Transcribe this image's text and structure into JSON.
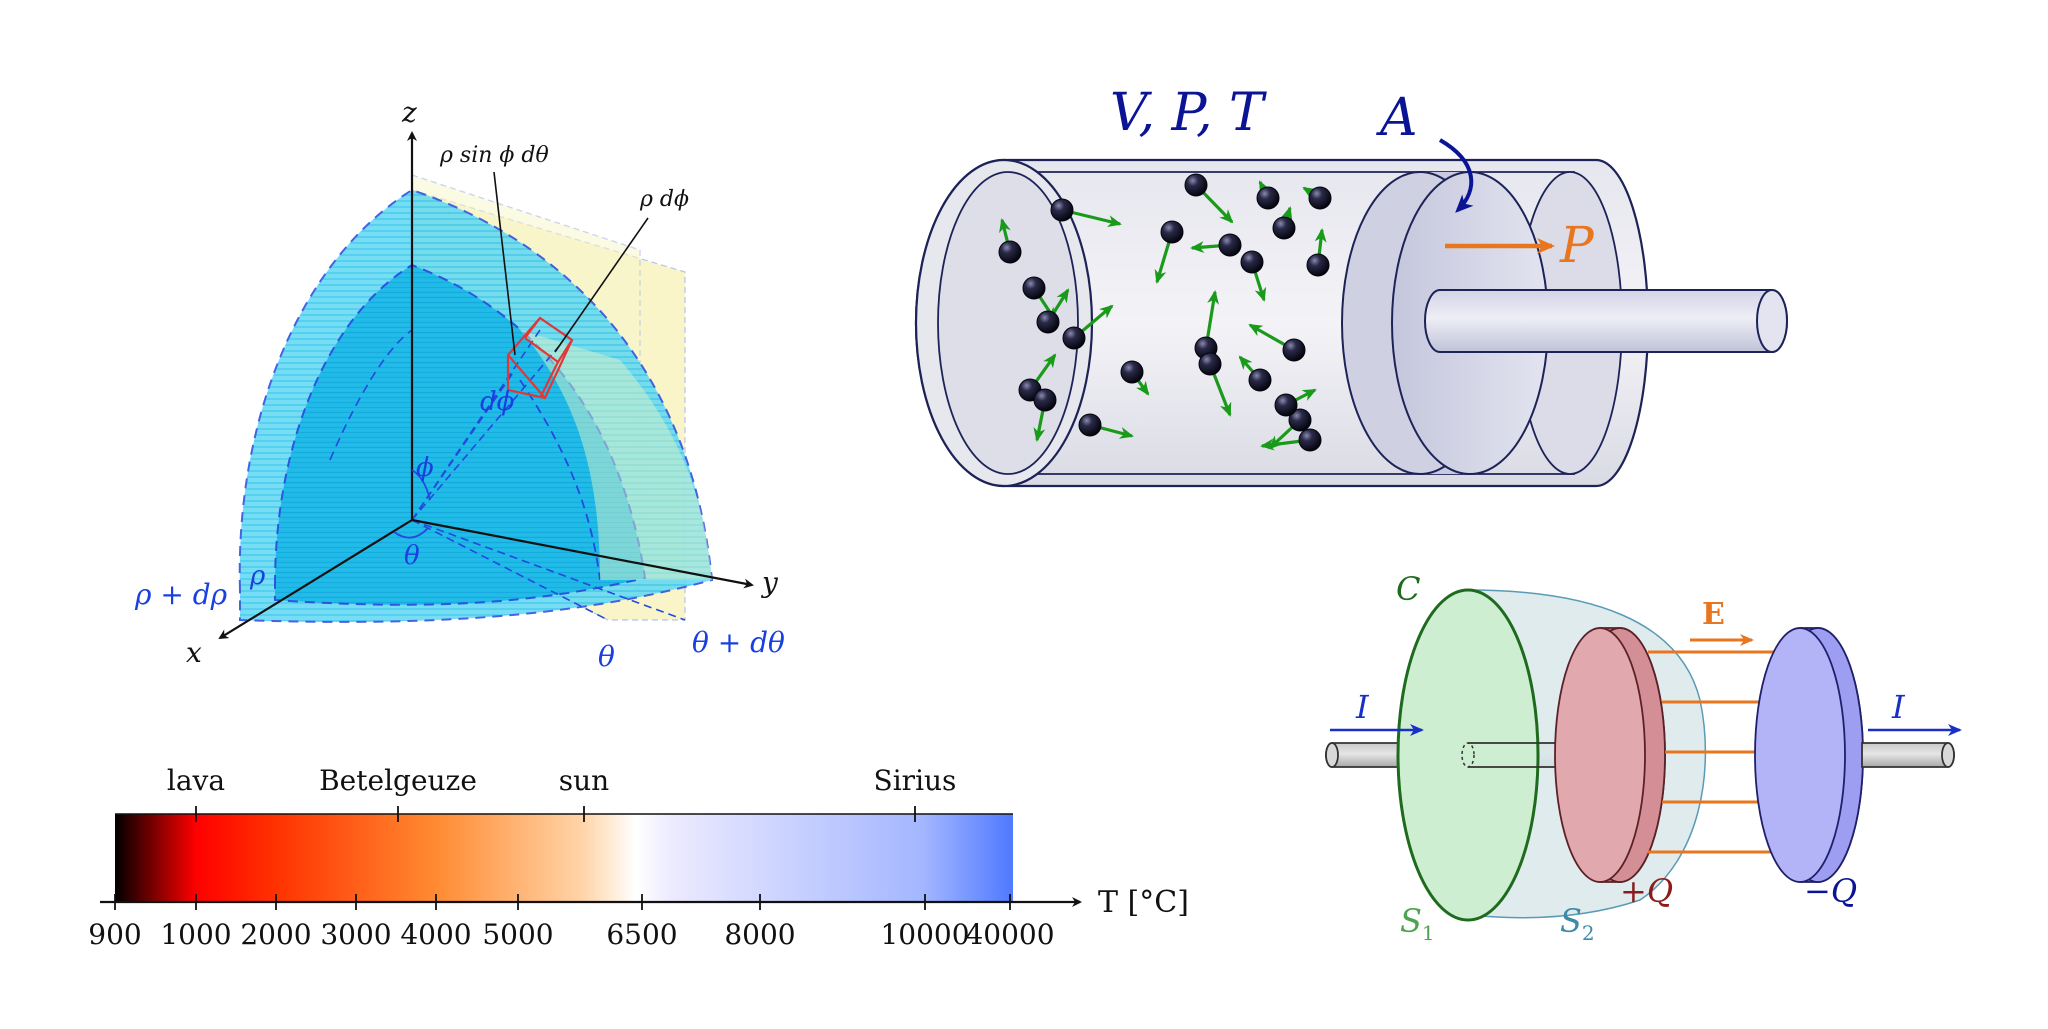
{
  "sphere": {
    "axis_x": "x",
    "axis_y": "y",
    "axis_z": "z",
    "label_rho_sin": "ρ sin ϕ dθ",
    "label_rho_dphi": "ρ dϕ",
    "label_dphi": "dϕ",
    "label_phi": "ϕ",
    "label_theta_origin": "θ",
    "label_rho": "ρ",
    "label_rho_drho": "ρ + dρ",
    "label_theta": "θ",
    "label_theta_dtheta": "θ + dθ"
  },
  "cylinder": {
    "label_vpt": "V, P, T",
    "label_area": "A",
    "label_pressure": "P"
  },
  "colorbar": {
    "axis_label": "T [°C]",
    "top_labels": [
      "lava",
      "Betelgeuze",
      "sun",
      "Sirius"
    ],
    "ticks": [
      "900",
      "1000",
      "2000",
      "3000",
      "4000",
      "5000",
      "6500",
      "8000",
      "10000",
      "40000"
    ]
  },
  "capacitor": {
    "label_c": "C",
    "label_s1": "S",
    "label_s1_sub": "1",
    "label_s2": "S",
    "label_s2_sub": "2",
    "label_i_left": "I",
    "label_i_right": "I",
    "label_e": "E",
    "label_plus_q": "+Q",
    "label_minus_q": "−Q"
  },
  "colors": {
    "ink": "#10133a",
    "navy": "#0a1494",
    "orange": "#e8761e",
    "green": "#1a9a1a",
    "blue_label": "#1a3fe0",
    "sphere_cyan": "#16c6ee",
    "plane_yellow": "#f7f2b8",
    "crimson": "#8b1c1c",
    "dark_green": "#1e6b1e",
    "teal": "#3d8aa8"
  }
}
